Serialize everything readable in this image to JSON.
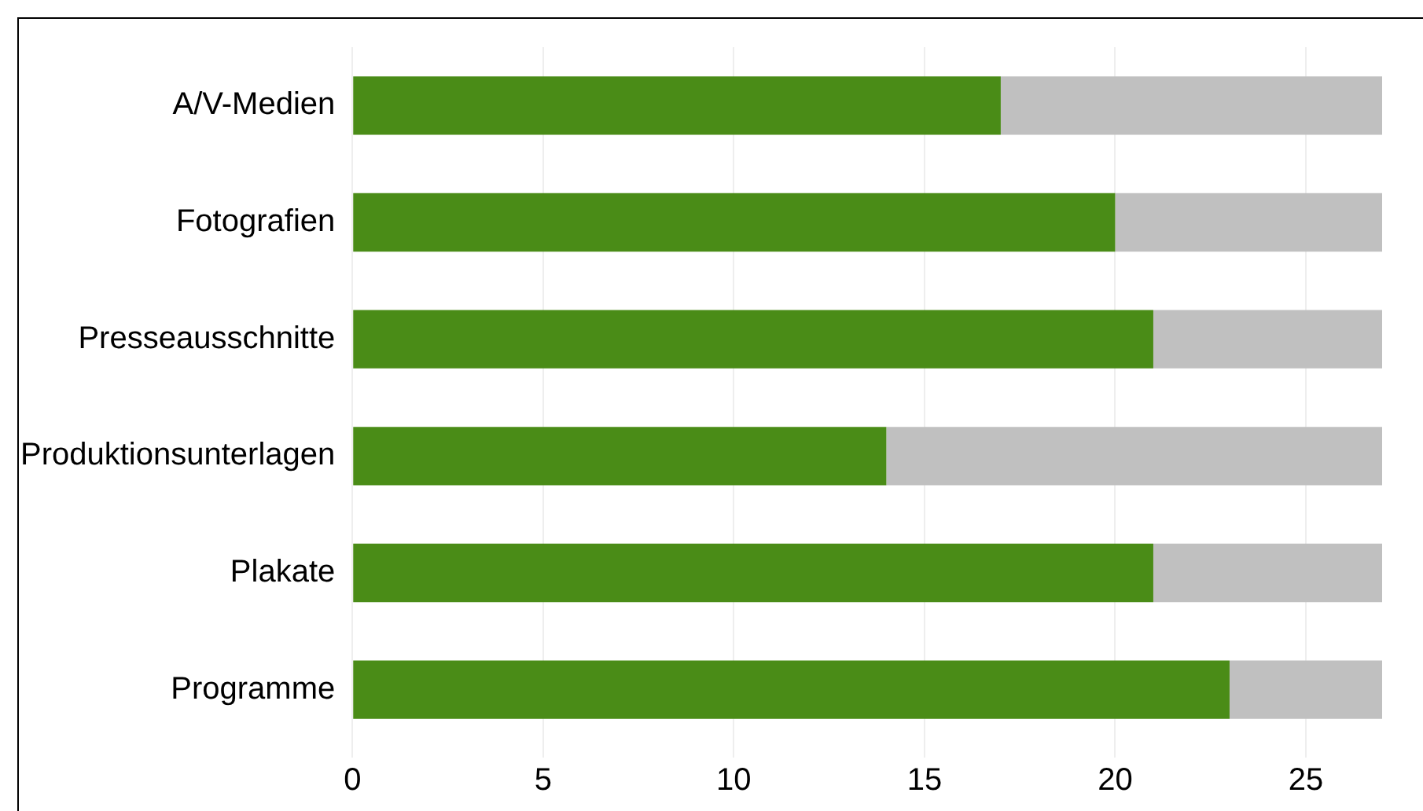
{
  "chart_data": {
    "type": "bar",
    "orientation": "horizontal",
    "stacked": true,
    "categories": [
      "A/V-Medien",
      "Fotografien",
      "Presseausschnitte",
      "Produktionsunterlagen",
      "Plakate",
      "Programme"
    ],
    "series": [
      {
        "color": "#4a8c17",
        "values": [
          17,
          20,
          21,
          14,
          21,
          23
        ]
      },
      {
        "color": "#c0c0c0",
        "values": [
          10,
          7,
          6,
          13,
          6,
          4
        ]
      }
    ],
    "xlim": [
      0,
      27
    ],
    "xticks": [
      0,
      5,
      10,
      15,
      20,
      25
    ],
    "grid": "x",
    "legend": false
  }
}
